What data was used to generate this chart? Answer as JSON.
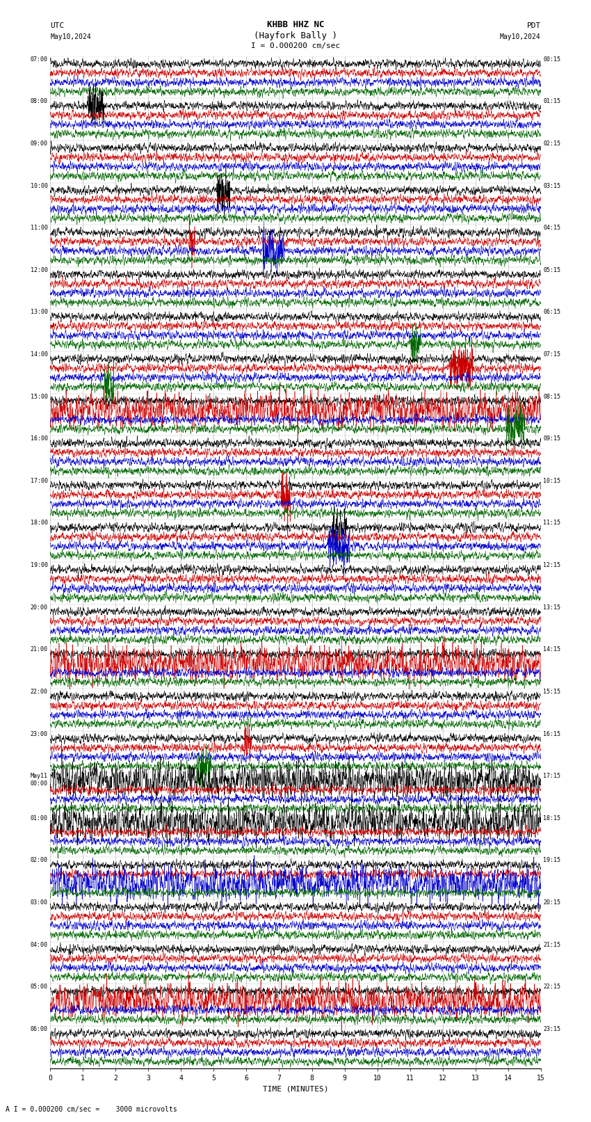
{
  "title_line1": "KHBB HHZ NC",
  "title_line2": "(Hayfork Bally )",
  "scale_label": "I = 0.000200 cm/sec",
  "bottom_label": "A I = 0.000200 cm/sec =    3000 microvolts",
  "xlabel": "TIME (MINUTES)",
  "x_min": 0,
  "x_max": 15,
  "x_ticks": [
    0,
    1,
    2,
    3,
    4,
    5,
    6,
    7,
    8,
    9,
    10,
    11,
    12,
    13,
    14,
    15
  ],
  "bg_color": "#ffffff",
  "trace_colors": [
    "#000000",
    "#cc0000",
    "#0000cc",
    "#006600"
  ],
  "grid_color": "#888888",
  "num_rows": 24,
  "utc_times": [
    "07:00",
    "08:00",
    "09:00",
    "10:00",
    "11:00",
    "12:00",
    "13:00",
    "14:00",
    "15:00",
    "16:00",
    "17:00",
    "18:00",
    "19:00",
    "20:00",
    "21:00",
    "22:00",
    "23:00",
    "May11\n00:00",
    "01:00",
    "02:00",
    "03:00",
    "04:00",
    "05:00",
    "06:00"
  ],
  "pdt_times": [
    "00:15",
    "01:15",
    "02:15",
    "03:15",
    "04:15",
    "05:15",
    "06:15",
    "07:15",
    "08:15",
    "09:15",
    "10:15",
    "11:15",
    "12:15",
    "13:15",
    "14:15",
    "15:15",
    "16:15",
    "17:15",
    "18:15",
    "19:15",
    "20:15",
    "21:15",
    "22:15",
    "23:15"
  ],
  "fig_width": 8.5,
  "fig_height": 16.13,
  "dpi": 100
}
